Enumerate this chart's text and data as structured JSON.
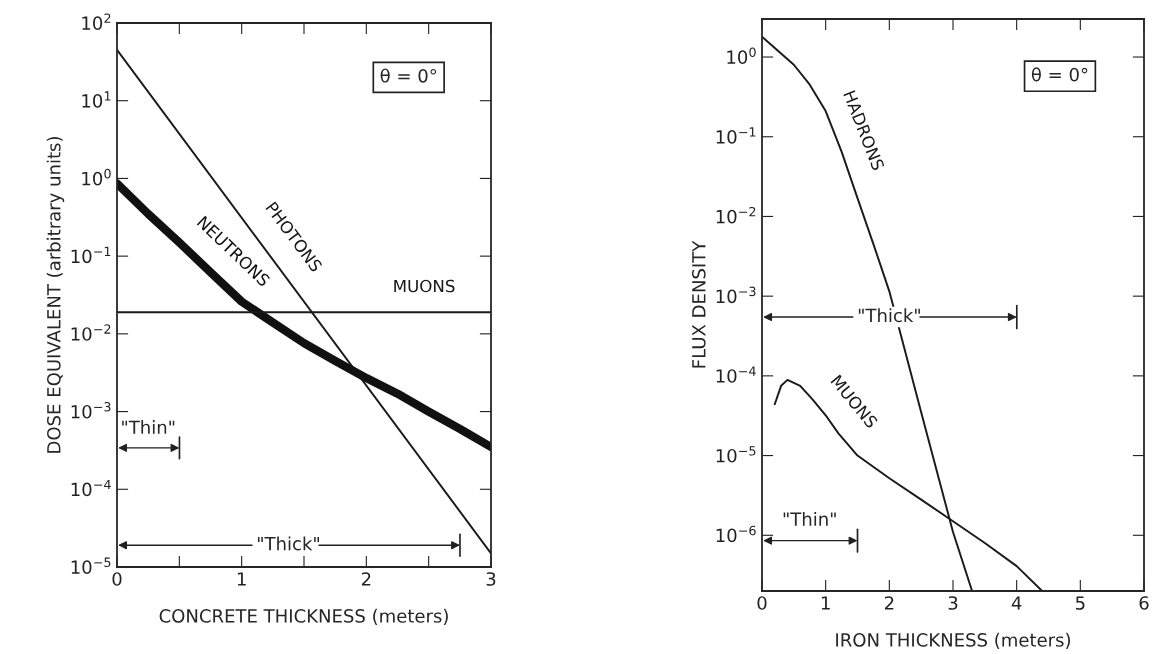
{
  "chart_data": [
    {
      "type": "line",
      "xlabel": "CONCRETE THICKNESS (meters)",
      "ylabel": "DOSE EQUIVALENT (arbitrary units)",
      "log": "y",
      "xlim": [
        0,
        3
      ],
      "ylim": [
        1e-05,
        100
      ],
      "xticks": [
        0,
        {
          "value": 0.5,
          "label": null
        },
        1,
        {
          "value": 1.5,
          "label": null
        },
        2,
        {
          "value": 2.5,
          "label": null
        },
        3
      ],
      "yticks": [
        {
          "value": 1e-05,
          "label": "10$^{−5}$"
        },
        {
          "value": 0.0001,
          "label": "10$^{−4}$"
        },
        {
          "value": 0.001,
          "label": "10$^{−3}$"
        },
        {
          "value": 0.01,
          "label": "10$^{−2}$"
        },
        {
          "value": 0.1,
          "label": "10$^{−1}$"
        },
        {
          "value": 1,
          "label": "10$^{0}$"
        },
        {
          "value": 10,
          "label": "10$^{1}$"
        },
        {
          "value": 100,
          "label": "10$^{2}$"
        }
      ],
      "grid": false,
      "legend": false,
      "series": [
        {
          "name": "PHOTONS",
          "color": "#1a1a1a",
          "x": [
            0,
            3
          ],
          "values": [
            45,
            1.5e-05
          ]
        },
        {
          "name": "NEUTRONS",
          "color": "#111111",
          "x": [
            0,
            0.25,
            0.5,
            0.75,
            1,
            1.25,
            1.5,
            1.75,
            2,
            2.25,
            2.5,
            2.75,
            3
          ],
          "values": [
            0.86,
            0.35,
            0.15,
            0.062,
            0.026,
            0.014,
            0.0076,
            0.0045,
            0.0027,
            0.0017,
            0.001,
            0.0006,
            0.00035
          ]
        },
        {
          "name": "MUONS",
          "color": "#1a1a1a",
          "x": [
            0,
            3
          ],
          "values": [
            0.019,
            0.019
          ]
        }
      ],
      "annotations": [
        "θ = 0°",
        "\"Thin\"",
        "\"Thick\""
      ]
    },
    {
      "type": "line",
      "xlabel": "IRON THICKNESS (meters)",
      "ylabel": "FLUX DENSITY",
      "log": "y",
      "xlim": [
        0,
        6
      ],
      "ylim": [
        2e-07,
        3
      ],
      "xticks": [
        0,
        1,
        2,
        3,
        4,
        5,
        6
      ],
      "yticks": [
        {
          "value": 1e-06,
          "label": "10$^{−6}$"
        },
        {
          "value": 1e-05,
          "label": "10$^{−5}$"
        },
        {
          "value": 0.0001,
          "label": "10$^{−4}$"
        },
        {
          "value": 0.001,
          "label": "10$^{−3}$"
        },
        {
          "value": 0.01,
          "label": "10$^{−2}$"
        },
        {
          "value": 0.1,
          "label": "10$^{−1}$"
        },
        {
          "value": 1,
          "label": "10$^{0}$"
        }
      ],
      "grid": false,
      "legend": false,
      "series": [
        {
          "name": "HADRONS",
          "color": "#1a1a1a",
          "x": [
            0,
            0.25,
            0.5,
            0.75,
            1,
            1.25,
            1.5,
            1.75,
            2,
            2.5,
            3,
            3.3
          ],
          "values": [
            1.8,
            1.2,
            0.8,
            0.45,
            0.21,
            0.065,
            0.017,
            0.0045,
            0.00115,
            3.5e-05,
            1.1e-06,
            2e-07
          ]
        },
        {
          "name": "MUONS",
          "color": "#1a1a1a",
          "x": [
            0.2,
            0.3,
            0.4,
            0.6,
            0.8,
            1,
            1.2,
            1.5,
            2,
            2.5,
            3,
            3.5,
            4,
            4.4
          ],
          "values": [
            4.4e-05,
            7.5e-05,
            8.9e-05,
            7.5e-05,
            5e-05,
            3.2e-05,
            1.9e-05,
            1e-05,
            5.2e-06,
            2.8e-06,
            1.5e-06,
            8e-07,
            4.1e-07,
            2e-07
          ]
        }
      ],
      "annotations": [
        "θ = 0°",
        "\"Thin\"",
        "\"Thick\""
      ]
    }
  ]
}
